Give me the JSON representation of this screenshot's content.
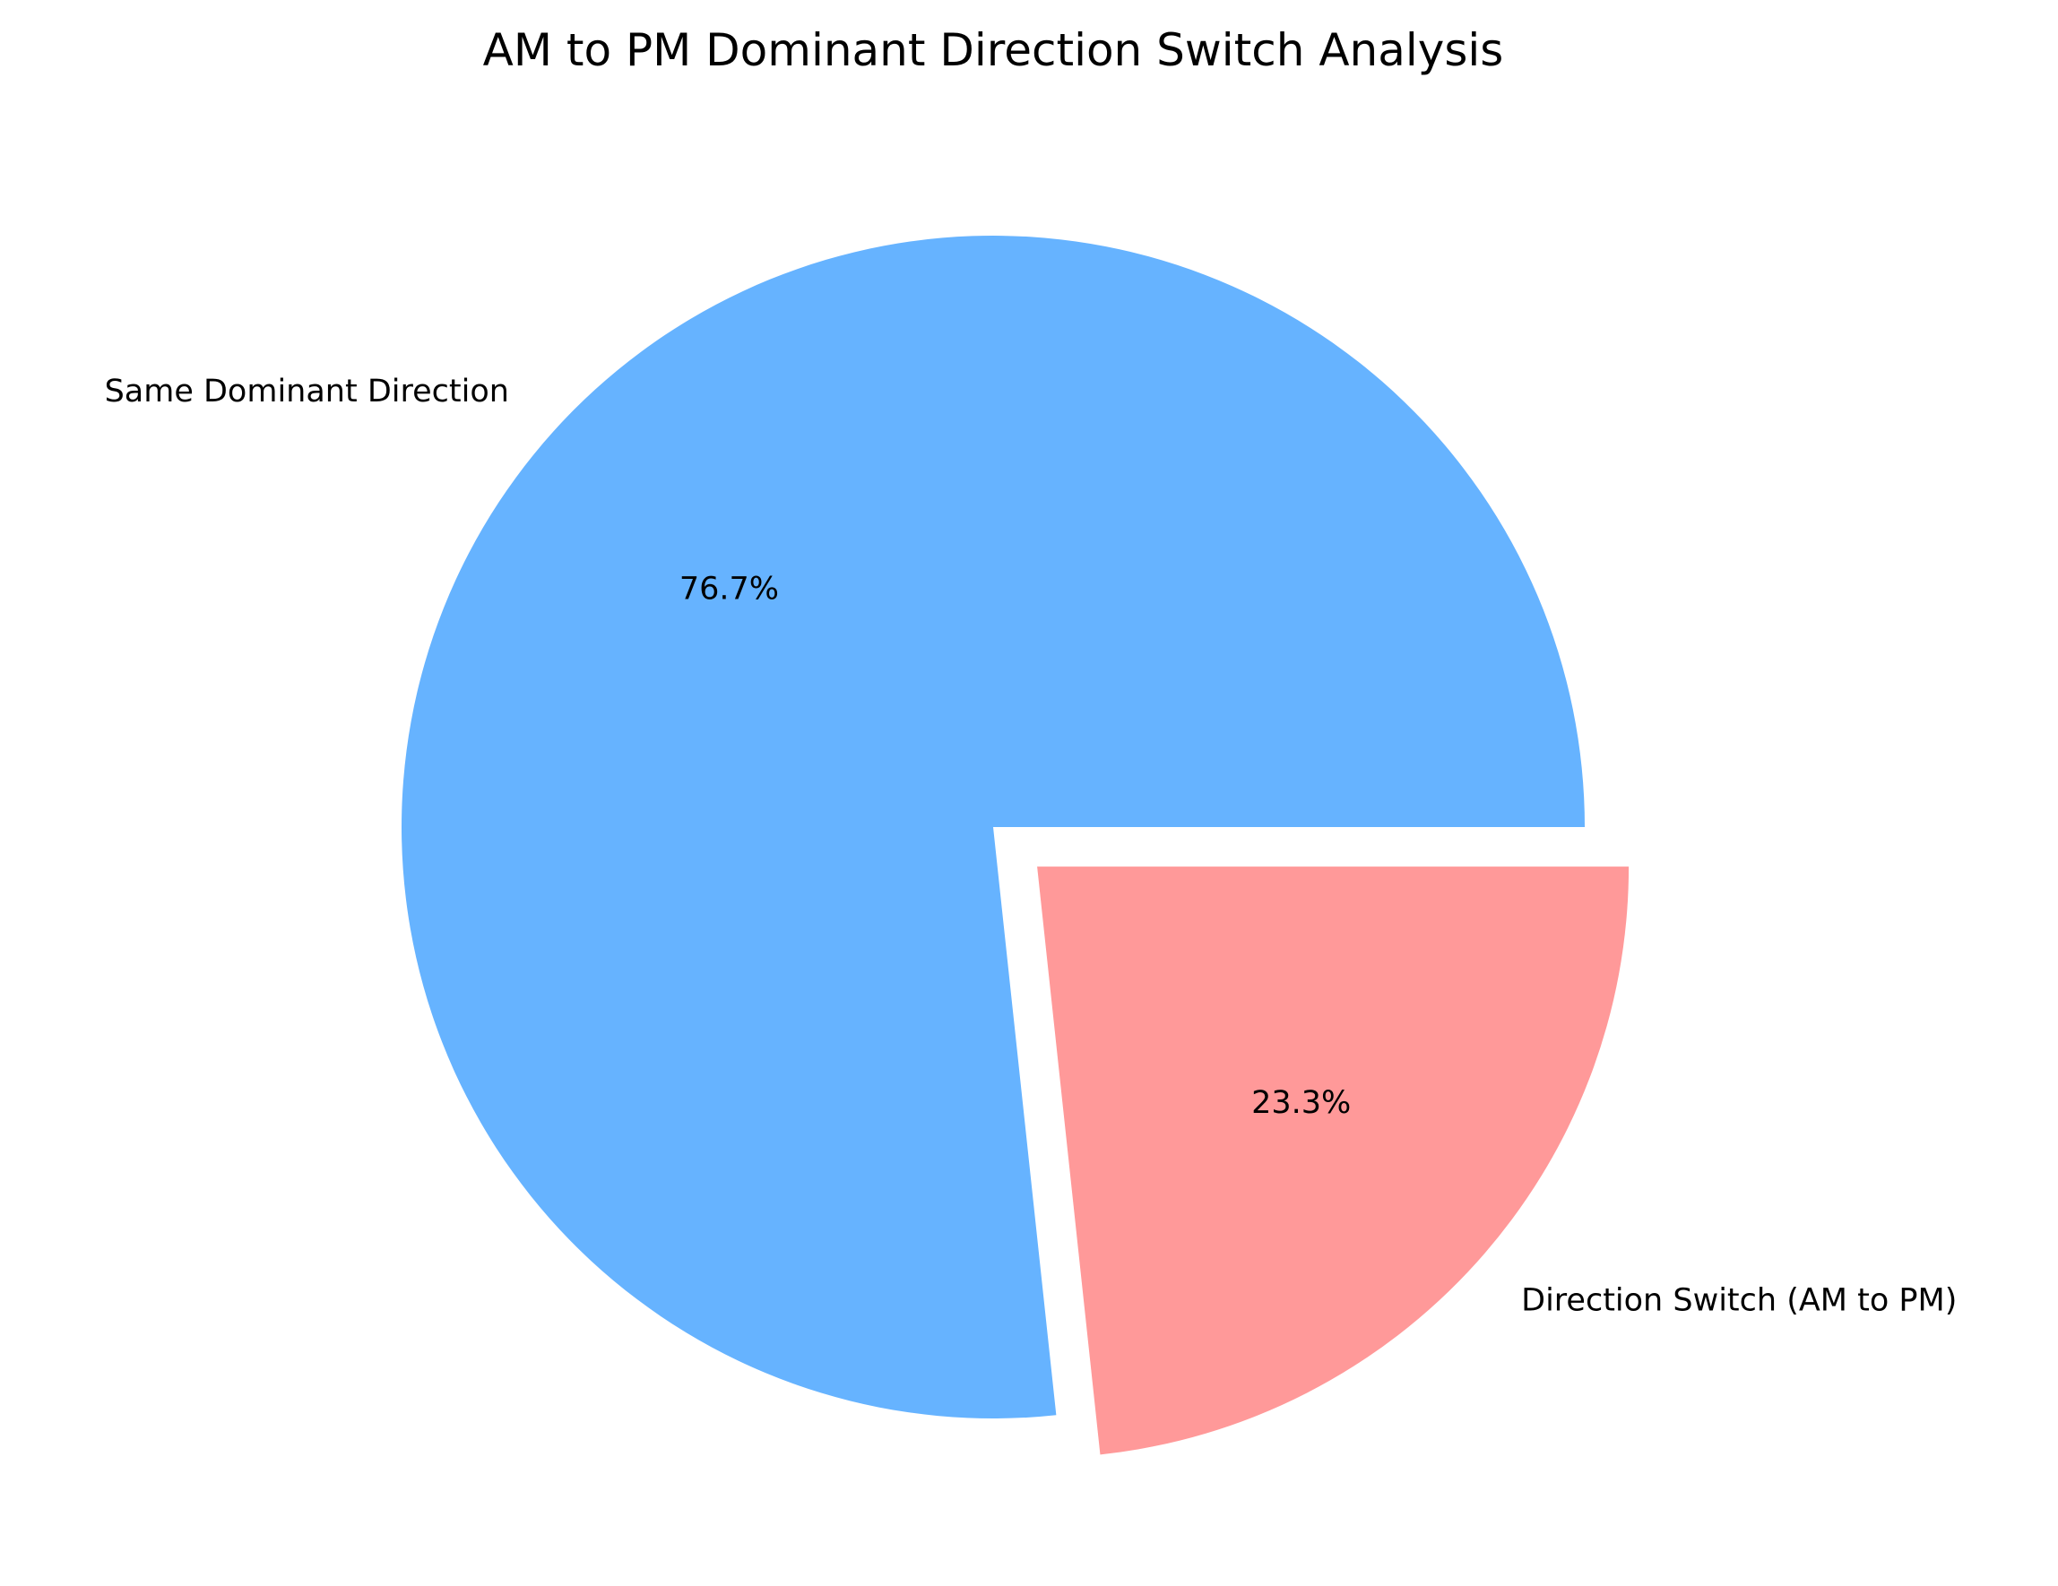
{
  "chart_data": {
    "type": "pie",
    "title": "AM to PM Dominant Direction Switch Analysis",
    "start_angle": 0,
    "direction": "counterclockwise",
    "slices": [
      {
        "label": "Same Dominant Direction",
        "value": 76.7,
        "pct_label": "76.7%",
        "color": "#66b3ff",
        "explode": 0
      },
      {
        "label": "Direction Switch (AM to PM)",
        "value": 23.3,
        "pct_label": "23.3%",
        "color": "#ff9999",
        "explode": 0.1
      }
    ]
  }
}
